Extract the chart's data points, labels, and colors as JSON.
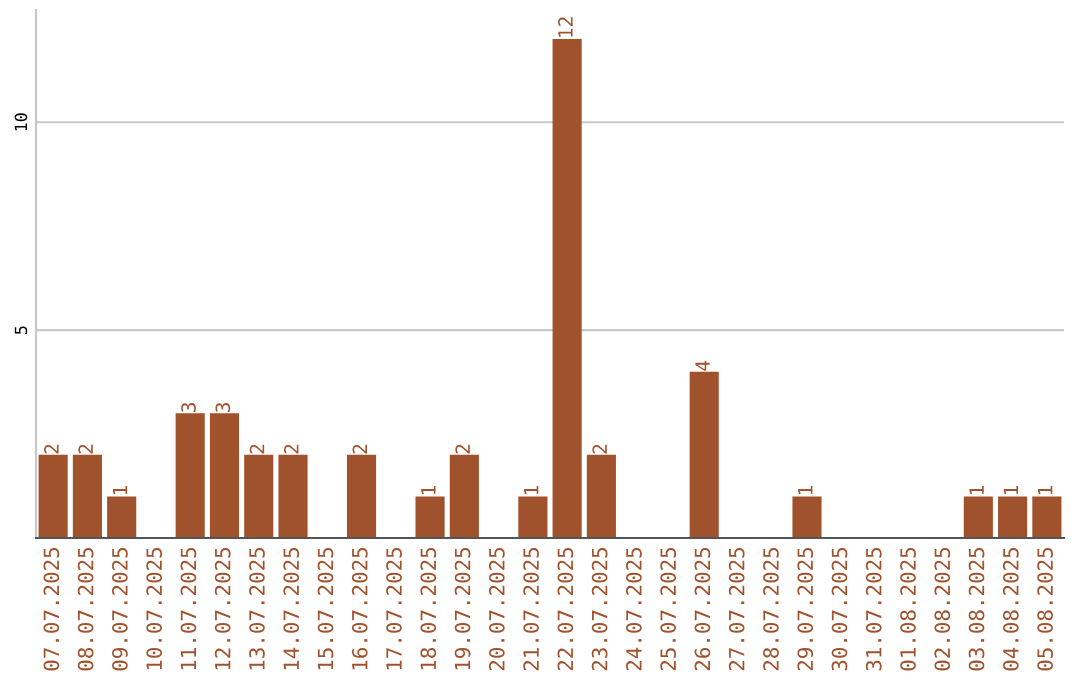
{
  "chart_data": {
    "type": "bar",
    "categories": [
      "07.07.2025",
      "08.07.2025",
      "09.07.2025",
      "10.07.2025",
      "11.07.2025",
      "12.07.2025",
      "13.07.2025",
      "14.07.2025",
      "15.07.2025",
      "16.07.2025",
      "17.07.2025",
      "18.07.2025",
      "19.07.2025",
      "20.07.2025",
      "21.07.2025",
      "22.07.2025",
      "23.07.2025",
      "24.07.2025",
      "25.07.2025",
      "26.07.2025",
      "27.07.2025",
      "28.07.2025",
      "29.07.2025",
      "30.07.2025",
      "31.07.2025",
      "01.08.2025",
      "02.08.2025",
      "03.08.2025",
      "04.08.2025",
      "05.08.2025"
    ],
    "values": [
      2,
      2,
      1,
      0,
      3,
      3,
      2,
      2,
      0,
      2,
      0,
      1,
      2,
      0,
      1,
      12,
      2,
      0,
      0,
      4,
      0,
      0,
      1,
      0,
      0,
      0,
      0,
      1,
      1,
      1
    ],
    "value_labels": [
      "2",
      "2",
      "1",
      null,
      "3",
      "3",
      "2",
      "2",
      null,
      "2",
      null,
      "1",
      "2",
      null,
      "1",
      "12",
      "2",
      null,
      null,
      "4",
      null,
      null,
      "1",
      null,
      null,
      null,
      null,
      "1",
      "1",
      "1"
    ],
    "color": "#a0522d",
    "ylim": [
      0,
      12.7
    ],
    "yticks": [
      5,
      10
    ],
    "grid": "y",
    "legend": false
  }
}
